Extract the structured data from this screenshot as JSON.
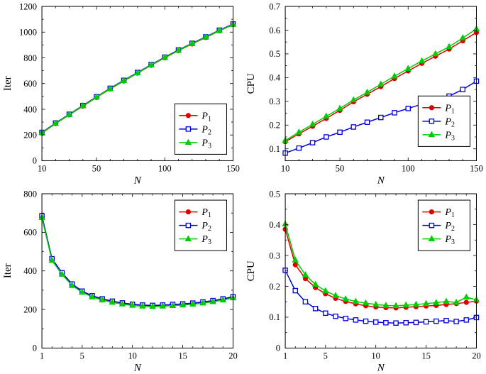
{
  "figure": {
    "background": "#ffffff",
    "text_color": "#000000",
    "axis_color": "#000000"
  },
  "chart_data": [
    {
      "id": "top-left",
      "type": "line",
      "title": "",
      "xlabel": "N",
      "ylabel": "Iter",
      "xlim": [
        10,
        150
      ],
      "ylim": [
        0,
        1200
      ],
      "xticks": [
        10,
        50,
        100,
        150
      ],
      "yticks": [
        0,
        200,
        400,
        600,
        800,
        1000,
        1200
      ],
      "x_minor_step": 10,
      "y_minor_step": 100,
      "grid": false,
      "legend": {
        "position": "bottom-right",
        "inset_y": 9
      },
      "x": [
        10,
        20,
        30,
        40,
        50,
        60,
        70,
        80,
        90,
        100,
        110,
        120,
        130,
        140,
        150
      ],
      "series": [
        {
          "name": "𝒫₁",
          "color": "#dd0000",
          "marker": "filled-circle",
          "values": [
            215,
            288,
            356,
            424,
            492,
            558,
            620,
            681,
            742,
            800,
            856,
            908,
            958,
            1010,
            1058
          ]
        },
        {
          "name": "𝒫₂",
          "color": "#0000dd",
          "marker": "open-square",
          "values": [
            220,
            293,
            361,
            429,
            497,
            563,
            625,
            686,
            747,
            805,
            861,
            913,
            963,
            1015,
            1063
          ]
        },
        {
          "name": "𝒫₃",
          "color": "#00cc00",
          "marker": "filled-triangle",
          "values": [
            217,
            290,
            358,
            426,
            494,
            560,
            622,
            683,
            744,
            802,
            858,
            910,
            960,
            1012,
            1060
          ]
        }
      ]
    },
    {
      "id": "top-right",
      "type": "line",
      "title": "",
      "xlabel": "N",
      "ylabel": "CPU",
      "xlim": [
        10,
        150
      ],
      "ylim": [
        0.05,
        0.7
      ],
      "xticks": [
        10,
        50,
        100,
        150
      ],
      "yticks": [
        0.1,
        0.2,
        0.3,
        0.4,
        0.5,
        0.6,
        0.7
      ],
      "x_minor_step": 10,
      "y_minor_step": 0.05,
      "grid": false,
      "legend": {
        "position": "bottom-right",
        "inset_y": 20
      },
      "x": [
        10,
        20,
        30,
        40,
        50,
        60,
        70,
        80,
        90,
        100,
        110,
        120,
        130,
        140,
        150
      ],
      "series": [
        {
          "name": "𝒫₁",
          "color": "#dd0000",
          "marker": "filled-circle",
          "values": [
            0.13,
            0.163,
            0.195,
            0.228,
            0.262,
            0.298,
            0.33,
            0.362,
            0.396,
            0.428,
            0.46,
            0.49,
            0.52,
            0.555,
            0.59
          ]
        },
        {
          "name": "𝒫₂",
          "color": "#0000dd",
          "marker": "open-square",
          "values": [
            0.082,
            0.103,
            0.126,
            0.15,
            0.17,
            0.192,
            0.212,
            0.232,
            0.252,
            0.27,
            0.288,
            0.305,
            0.322,
            0.35,
            0.385
          ]
        },
        {
          "name": "𝒫₃",
          "color": "#00cc00",
          "marker": "filled-triangle",
          "values": [
            0.135,
            0.17,
            0.203,
            0.237,
            0.27,
            0.306,
            0.338,
            0.372,
            0.406,
            0.438,
            0.47,
            0.5,
            0.53,
            0.567,
            0.605
          ]
        }
      ]
    },
    {
      "id": "bottom-left",
      "type": "line",
      "title": "",
      "xlabel": "N",
      "ylabel": "Iter",
      "xlim": [
        1,
        20
      ],
      "ylim": [
        0,
        800
      ],
      "xticks": [
        1,
        5,
        10,
        15,
        20
      ],
      "yticks": [
        0,
        200,
        400,
        600,
        800
      ],
      "x_minor_step": 1,
      "y_minor_step": 100,
      "grid": false,
      "legend": {
        "position": "top-right",
        "inset_y": 9
      },
      "x": [
        1,
        2,
        3,
        4,
        5,
        6,
        7,
        8,
        9,
        10,
        11,
        12,
        13,
        14,
        15,
        16,
        17,
        18,
        19,
        20
      ],
      "series": [
        {
          "name": "𝒫₁",
          "color": "#dd0000",
          "marker": "filled-circle",
          "values": [
            680,
            458,
            386,
            328,
            292,
            268,
            252,
            240,
            231,
            224,
            220,
            218,
            220,
            223,
            226,
            230,
            236,
            243,
            252,
            263
          ]
        },
        {
          "name": "𝒫₂",
          "color": "#0000dd",
          "marker": "open-square",
          "values": [
            686,
            463,
            390,
            332,
            295,
            271,
            255,
            243,
            234,
            227,
            223,
            221,
            223,
            226,
            229,
            233,
            239,
            246,
            255,
            266
          ]
        },
        {
          "name": "𝒫₃",
          "color": "#00cc00",
          "marker": "filled-triangle",
          "values": [
            676,
            454,
            382,
            324,
            289,
            265,
            249,
            237,
            228,
            221,
            217,
            215,
            217,
            220,
            223,
            227,
            233,
            240,
            249,
            260
          ]
        }
      ]
    },
    {
      "id": "bottom-right",
      "type": "line",
      "title": "",
      "xlabel": "N",
      "ylabel": "CPU",
      "xlim": [
        1,
        20
      ],
      "ylim": [
        0,
        0.5
      ],
      "xticks": [
        1,
        5,
        10,
        15,
        20
      ],
      "yticks": [
        0,
        0.1,
        0.2,
        0.3,
        0.4,
        0.5
      ],
      "x_minor_step": 1,
      "y_minor_step": 0.05,
      "grid": false,
      "legend": {
        "position": "top-right",
        "inset_y": 9
      },
      "x": [
        1,
        2,
        3,
        4,
        5,
        6,
        7,
        8,
        9,
        10,
        11,
        12,
        13,
        14,
        15,
        16,
        17,
        18,
        19,
        20
      ],
      "series": [
        {
          "name": "𝒫₁",
          "color": "#dd0000",
          "marker": "filled-circle",
          "values": [
            0.385,
            0.27,
            0.225,
            0.196,
            0.176,
            0.161,
            0.151,
            0.143,
            0.137,
            0.133,
            0.131,
            0.13,
            0.132,
            0.134,
            0.136,
            0.138,
            0.141,
            0.144,
            0.148,
            0.152
          ]
        },
        {
          "name": "𝒫₂",
          "color": "#0000dd",
          "marker": "open-square",
          "values": [
            0.252,
            0.186,
            0.15,
            0.128,
            0.113,
            0.103,
            0.096,
            0.091,
            0.087,
            0.084,
            0.082,
            0.081,
            0.082,
            0.083,
            0.085,
            0.087,
            0.089,
            0.086,
            0.091,
            0.099
          ]
        },
        {
          "name": "𝒫₃",
          "color": "#00cc00",
          "marker": "filled-triangle",
          "values": [
            0.402,
            0.285,
            0.237,
            0.206,
            0.185,
            0.17,
            0.159,
            0.151,
            0.146,
            0.141,
            0.138,
            0.137,
            0.139,
            0.141,
            0.144,
            0.147,
            0.151,
            0.148,
            0.165,
            0.156
          ]
        }
      ]
    }
  ]
}
